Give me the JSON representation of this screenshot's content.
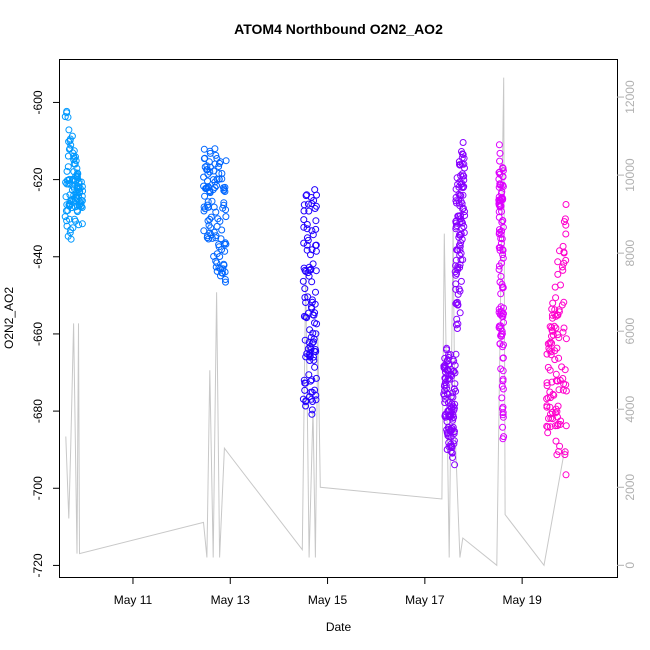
{
  "chart_data": {
    "type": "scatter",
    "title": "ATOM4 Northbound O2N2_AO2",
    "xlabel": "Date",
    "ylabel": "O2N2_AO2",
    "x_ticks": [
      "May 11",
      "May 13",
      "May 15",
      "May 17",
      "May 19"
    ],
    "x_tick_days": [
      11,
      13,
      15,
      17,
      19
    ],
    "xlim_days": [
      9.5,
      20.95
    ],
    "ylim": [
      -723,
      -589
    ],
    "y_ticks": [
      -720,
      -700,
      -680,
      -660,
      -640,
      -620,
      -600
    ],
    "y2_ticks": [
      0,
      2000,
      4000,
      6000,
      8000,
      10000,
      12000
    ],
    "y2lim": [
      -300,
      12950
    ],
    "grid": false,
    "series": [
      {
        "name": "",
        "color": "#0099FF",
        "segments": [
          {
            "x": [
              9.6,
              9.97
            ],
            "y_start": [
              -636,
              -623
            ],
            "y_end": [
              -601,
              -628
            ],
            "spread": 6
          }
        ]
      },
      {
        "name": "",
        "color": "#0066FF",
        "segments": [
          {
            "x": [
              12.45,
              12.92
            ],
            "y_start": [
              -613,
              -618
            ],
            "y_end": [
              -628,
              -648
            ],
            "spread": 7
          }
        ]
      },
      {
        "name": "",
        "color": "#2200FF",
        "segments": [
          {
            "x": [
              14.5,
              14.78
            ],
            "y_start": [
              -625,
              -627
            ],
            "y_end": [
              -675,
              -678
            ],
            "spread": 8
          }
        ]
      },
      {
        "name": "",
        "color": "#8800FF",
        "segments": [
          {
            "x": [
              17.38,
              17.62
            ],
            "y_start": [
              -668,
              -672
            ],
            "y_end": [
              -680,
              -690
            ],
            "spread": 9
          },
          {
            "x": [
              17.62,
              17.82
            ],
            "y_start": [
              -622,
              -617
            ],
            "y_end": [
              -670,
              -628
            ],
            "spread": 10
          }
        ]
      },
      {
        "name": "",
        "color": "#DD00FF",
        "segments": [
          {
            "x": [
              18.52,
              18.62
            ],
            "y_start": [
              -620,
              -620
            ],
            "y_end": [
              -650,
              -690
            ],
            "spread": 14
          }
        ]
      },
      {
        "name": "",
        "color": "#FF00CC",
        "segments": [
          {
            "x": [
              19.5,
              19.92
            ],
            "y_start": [
              -672,
              -625
            ],
            "y_end": [
              -680,
              -690
            ],
            "spread": 12
          }
        ]
      }
    ],
    "secondary_line": {
      "color": "#c8c8c8",
      "x": [
        9.62,
        9.68,
        9.72,
        9.78,
        9.85,
        9.88,
        9.9,
        12.45,
        12.52,
        12.58,
        12.65,
        12.72,
        12.78,
        12.88,
        13.0,
        14.48,
        14.55,
        14.62,
        14.7,
        14.75,
        14.8,
        14.85,
        17.35,
        17.4,
        17.5,
        17.58,
        17.62,
        17.72,
        17.78,
        18.48,
        18.62,
        18.65,
        19.45,
        19.88
      ],
      "y": [
        3300,
        1200,
        3000,
        6200,
        300,
        6200,
        300,
        1100,
        200,
        5000,
        200,
        7000,
        200,
        3000,
        2800,
        400,
        7500,
        200,
        4000,
        200,
        6000,
        2000,
        1700,
        8500,
        200,
        8600,
        3500,
        200,
        700,
        0,
        12500,
        1300,
        0,
        3000
      ]
    }
  }
}
